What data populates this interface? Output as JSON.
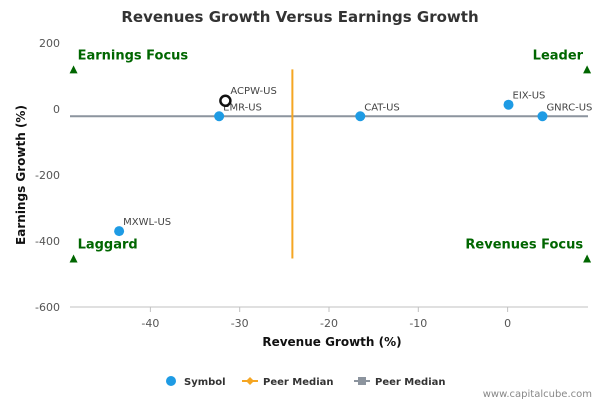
{
  "chart_data": {
    "type": "scatter",
    "title": "Revenues Growth Versus Earnings Growth",
    "xlabel": "Revenue Growth (%)",
    "ylabel": "Earnings Growth (%)",
    "xlim": [
      -49,
      9
    ],
    "ylim": [
      -600,
      200
    ],
    "x_ticks": [
      -40,
      -30,
      -20,
      -10,
      0
    ],
    "y_ticks": [
      200,
      0,
      -200,
      -400,
      -600
    ],
    "grid": false,
    "legend_position": "bottom",
    "series": [
      {
        "name": "Symbol",
        "color": "#1e9be4",
        "points": [
          {
            "label": "EMR-US",
            "x": -32.3,
            "y": -22
          },
          {
            "label": "CAT-US",
            "x": -16.5,
            "y": -22
          },
          {
            "label": "EIX-US",
            "x": 0.1,
            "y": 13
          },
          {
            "label": "GNRC-US",
            "x": 3.9,
            "y": -22
          },
          {
            "label": "MXWL-US",
            "x": -43.5,
            "y": -370
          }
        ]
      },
      {
        "name": "Peer Median",
        "color": "#f5a623",
        "line": {
          "x": -24.1,
          "y_from": -453,
          "y_to": 120
        }
      },
      {
        "name": "Peer Median",
        "color": "#8c949e",
        "line": {
          "y": -22,
          "x_from": -49,
          "x_to": 9
        }
      }
    ],
    "focus_point": {
      "label": "ACPW-US",
      "x": -31.6,
      "y": 25
    },
    "quadrants": [
      {
        "label": "Earnings Focus",
        "position": "top-left",
        "x": -48.6,
        "y": 120
      },
      {
        "label": "Leader",
        "position": "top-right",
        "x": 8.9,
        "y": 120
      },
      {
        "label": "Laggard",
        "position": "bottom-left",
        "x": -48.6,
        "y": -453
      },
      {
        "label": "Revenues Focus",
        "position": "bottom-right",
        "x": 8.9,
        "y": -453
      }
    ],
    "quadrant_color": "#006600"
  },
  "legend": [
    {
      "label": "Symbol",
      "marker": "circle",
      "color": "#1e9be4"
    },
    {
      "label": "Peer Median",
      "marker": "diamond-line",
      "color": "#f5a623"
    },
    {
      "label": "Peer Median",
      "marker": "square-line",
      "color": "#8c949e"
    }
  ],
  "watermark": "www.capitalcube.com"
}
